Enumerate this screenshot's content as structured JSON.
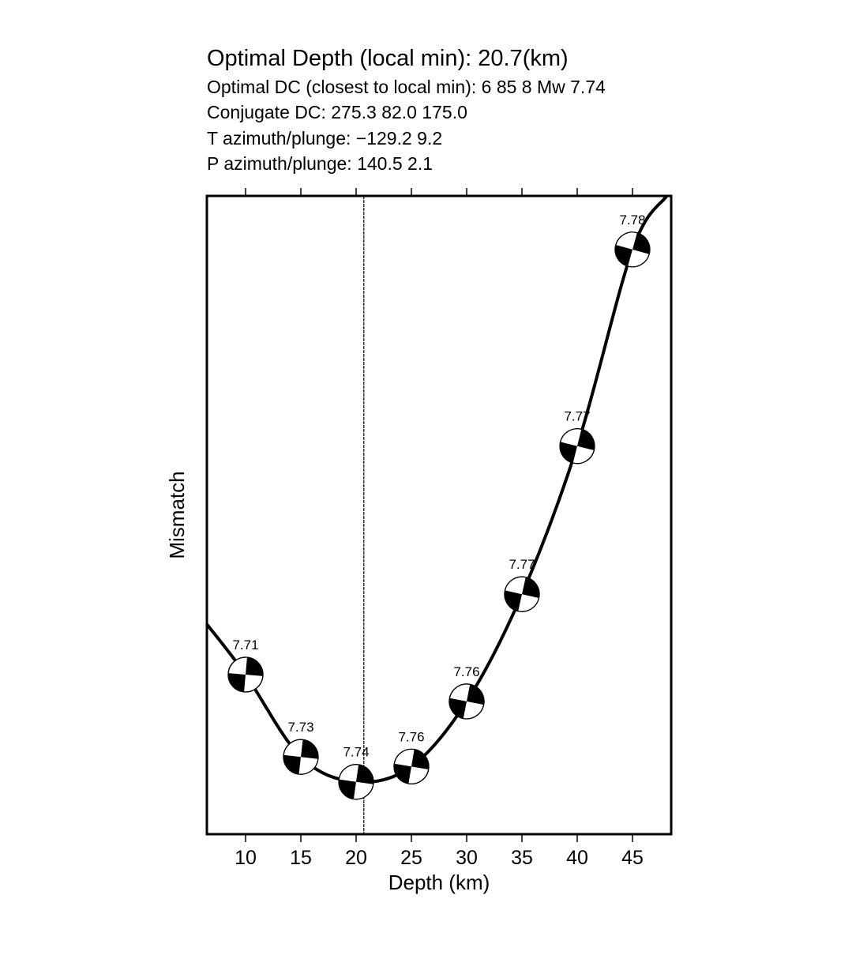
{
  "header": {
    "title": "Optimal Depth (local min):  20.7(km)",
    "line1": "Optimal DC (closest to local min): 6 85 8 Mw 7.74",
    "line2": "Conjugate DC: 275.3 82.0 175.0",
    "line3": "T azimuth/plunge: −129.2 9.2",
    "line4": "P azimuth/plunge: 140.5 2.1"
  },
  "chart_data": {
    "type": "line",
    "xlabel": "Depth (km)",
    "ylabel": "Mismatch",
    "xlim": [
      6.5,
      48.5
    ],
    "ylim": [
      0,
      1
    ],
    "xticks": [
      10,
      15,
      20,
      25,
      30,
      35,
      40,
      45
    ],
    "grid": false,
    "optimal_depth": 20.7,
    "curve": {
      "x": [
        6.5,
        10,
        15,
        20,
        25,
        30,
        35,
        40,
        45,
        48.1
      ],
      "y": [
        0.329,
        0.25,
        0.121,
        0.082,
        0.106,
        0.208,
        0.376,
        0.608,
        0.916,
        1.0
      ]
    },
    "mechanisms": [
      {
        "depth": 10,
        "mismatch": 0.25,
        "mw": "7.71"
      },
      {
        "depth": 15,
        "mismatch": 0.121,
        "mw": "7.73"
      },
      {
        "depth": 20,
        "mismatch": 0.082,
        "mw": "7.74"
      },
      {
        "depth": 25,
        "mismatch": 0.106,
        "mw": "7.76"
      },
      {
        "depth": 30,
        "mismatch": 0.208,
        "mw": "7.76"
      },
      {
        "depth": 35,
        "mismatch": 0.376,
        "mw": "7.77"
      },
      {
        "depth": 40,
        "mismatch": 0.608,
        "mw": "7.77"
      },
      {
        "depth": 45,
        "mismatch": 0.916,
        "mw": "7.78"
      }
    ]
  }
}
